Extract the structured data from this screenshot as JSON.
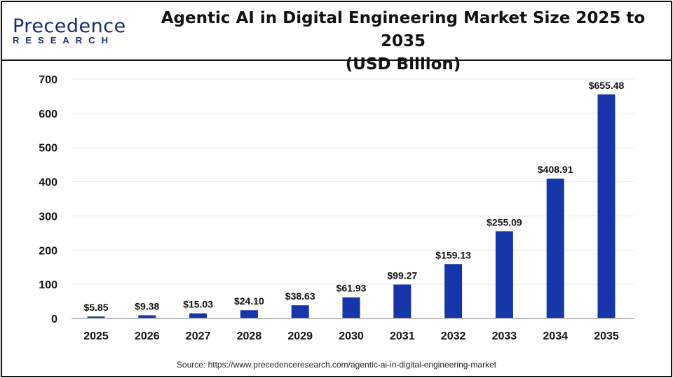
{
  "logo": {
    "line1": "Precedence",
    "line2": "RESEARCH"
  },
  "title": "Agentic AI in Digital Engineering Market Size 2025 to 2035",
  "subtitle": "(USD Billion)",
  "source": "Source: https://www.precedenceresearch.com/agentic-ai-in-digital-engineering-market",
  "chart_data": {
    "type": "bar",
    "title": "Agentic AI in Digital Engineering Market Size 2025 to 2035 (USD Billion)",
    "categories": [
      "2025",
      "2026",
      "2027",
      "2028",
      "2029",
      "2030",
      "2031",
      "2032",
      "2033",
      "2034",
      "2035"
    ],
    "values": [
      5.85,
      9.38,
      15.03,
      24.1,
      38.63,
      61.93,
      99.27,
      159.13,
      255.09,
      408.91,
      655.48
    ],
    "data_labels": [
      "$5.85",
      "$9.38",
      "$15.03",
      "$24.10",
      "$38.63",
      "$61.93",
      "$99.27",
      "$159.13",
      "$255.09",
      "$408.91",
      "$655.48"
    ],
    "yticks": [
      "0",
      "100",
      "200",
      "300",
      "400",
      "500",
      "600",
      "700"
    ],
    "ylim": [
      0,
      700
    ],
    "grid": true,
    "bar_color": "#1535a8"
  }
}
